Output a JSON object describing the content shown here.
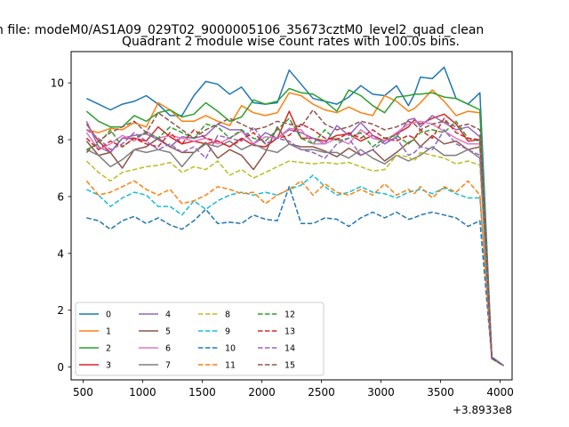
{
  "chart_data": {
    "type": "line",
    "suptitle": "n file: modeM0/AS1A09_029T02_9000005106_35673cztM0_level2_quad_clean",
    "title": "Quadrant 2 module wise count rates with 100.0s bins.",
    "xlabel": "",
    "ylabel": "",
    "x_offset_label": "+3.8933e8",
    "xlim": [
      400,
      4100
    ],
    "ylim": [
      -0.45,
      11.1
    ],
    "xticks": [
      500,
      1000,
      1500,
      2000,
      2500,
      3000,
      3500,
      4000
    ],
    "yticks": [
      0,
      2,
      4,
      6,
      8,
      10
    ],
    "x": [
      530,
      630,
      730,
      830,
      930,
      1030,
      1130,
      1230,
      1330,
      1430,
      1530,
      1630,
      1730,
      1830,
      1930,
      2030,
      2130,
      2230,
      2330,
      2430,
      2530,
      2630,
      2730,
      2830,
      2930,
      3030,
      3130,
      3230,
      3280,
      3330,
      3430,
      3530,
      3630,
      3730,
      3830,
      3930,
      4030
    ],
    "series": [
      {
        "name": "0",
        "color": "#1f77b4",
        "dash": "solid",
        "values": [
          9.45,
          9.25,
          9.05,
          9.25,
          9.35,
          9.55,
          9.25,
          8.85,
          8.85,
          9.55,
          10.05,
          9.95,
          9.6,
          9.85,
          9.3,
          9.25,
          9.3,
          10.45,
          9.95,
          9.45,
          9.35,
          9.25,
          9.5,
          9.9,
          9.6,
          9.55,
          9.9,
          9.2,
          9.6,
          10.2,
          10.15,
          10.55,
          9.45,
          9.25,
          9.65,
          0.35,
          0.05
        ]
      },
      {
        "name": "1",
        "color": "#ff7f0e",
        "dash": "solid",
        "values": [
          8.35,
          8.25,
          8.4,
          8.35,
          8.6,
          8.45,
          9.3,
          9.05,
          8.65,
          8.65,
          8.85,
          8.65,
          8.5,
          9.2,
          8.95,
          8.85,
          8.95,
          9.65,
          9.55,
          9.25,
          9.05,
          8.95,
          9.15,
          8.95,
          8.85,
          9.55,
          9.35,
          9.0,
          9.1,
          9.3,
          9.75,
          9.35,
          8.85,
          9.0,
          8.95,
          0.3,
          0.05
        ]
      },
      {
        "name": "2",
        "color": "#2ca02c",
        "dash": "solid",
        "values": [
          9.0,
          8.65,
          8.45,
          8.45,
          8.85,
          8.65,
          8.95,
          9.05,
          8.8,
          8.9,
          9.3,
          9.0,
          8.65,
          8.8,
          9.4,
          9.25,
          9.35,
          9.8,
          9.65,
          9.6,
          9.35,
          9.0,
          9.75,
          9.55,
          9.2,
          8.95,
          9.5,
          9.55,
          9.6,
          9.6,
          9.65,
          9.5,
          9.45,
          9.25,
          9.05,
          0.3,
          0.05
        ]
      },
      {
        "name": "3",
        "color": "#d62728",
        "dash": "solid",
        "values": [
          8.55,
          7.95,
          7.55,
          8.05,
          8.05,
          7.95,
          8.45,
          8.1,
          7.85,
          7.95,
          7.85,
          7.95,
          7.75,
          8.05,
          7.8,
          7.75,
          8.05,
          9.0,
          8.05,
          8.05,
          7.95,
          8.15,
          8.2,
          7.95,
          8.15,
          7.95,
          8.2,
          8.45,
          8.7,
          8.55,
          8.75,
          8.9,
          8.55,
          7.95,
          8.0,
          0.3,
          0.05
        ]
      },
      {
        "name": "4",
        "color": "#9467bd",
        "dash": "solid",
        "values": [
          8.65,
          7.75,
          7.55,
          8.05,
          8.15,
          8.2,
          8.0,
          7.75,
          8.1,
          8.05,
          8.15,
          8.55,
          8.35,
          8.35,
          7.85,
          8.25,
          8.05,
          8.35,
          8.25,
          8.05,
          7.85,
          8.5,
          8.15,
          8.6,
          8.15,
          7.85,
          8.1,
          8.7,
          8.75,
          8.45,
          8.85,
          8.6,
          8.35,
          8.45,
          8.1,
          0.3,
          0.05
        ]
      },
      {
        "name": "5",
        "color": "#8c564b",
        "dash": "solid",
        "values": [
          7.95,
          7.45,
          7.55,
          7.0,
          7.65,
          7.75,
          8.05,
          7.75,
          7.55,
          7.55,
          7.9,
          7.35,
          7.65,
          7.45,
          6.95,
          7.55,
          8.45,
          7.85,
          7.75,
          7.75,
          7.6,
          7.4,
          7.7,
          7.45,
          7.65,
          7.25,
          7.55,
          7.9,
          8.0,
          7.75,
          8.15,
          7.85,
          7.95,
          7.65,
          7.75,
          0.3,
          0.05
        ]
      },
      {
        "name": "6",
        "color": "#e377c2",
        "dash": "solid",
        "values": [
          8.25,
          7.65,
          7.85,
          8.15,
          7.95,
          8.3,
          8.05,
          8.15,
          8.05,
          7.95,
          8.05,
          7.85,
          8.05,
          8.3,
          7.85,
          8.1,
          8.05,
          8.4,
          8.35,
          7.85,
          7.85,
          8.05,
          7.85,
          8.35,
          8.05,
          7.95,
          8.25,
          8.55,
          8.6,
          8.65,
          8.55,
          8.3,
          8.05,
          7.85,
          7.85,
          0.3,
          0.05
        ]
      },
      {
        "name": "7",
        "color": "#7f7f7f",
        "dash": "solid",
        "values": [
          7.65,
          7.45,
          7.05,
          7.3,
          7.65,
          7.55,
          7.65,
          7.55,
          7.05,
          7.55,
          7.85,
          7.75,
          7.95,
          7.65,
          7.85,
          7.65,
          7.55,
          7.85,
          7.65,
          7.65,
          7.55,
          7.55,
          7.35,
          7.65,
          7.35,
          7.15,
          7.45,
          7.25,
          7.35,
          7.45,
          7.75,
          7.45,
          7.45,
          7.65,
          7.35,
          0.3,
          0.05
        ]
      },
      {
        "name": "8",
        "color": "#bcbd22",
        "dash": "dash",
        "values": [
          7.25,
          6.85,
          6.55,
          6.85,
          6.95,
          7.05,
          7.1,
          7.2,
          6.85,
          7.05,
          6.95,
          7.25,
          6.75,
          6.95,
          6.65,
          6.85,
          7.05,
          7.25,
          7.2,
          7.15,
          7.2,
          7.15,
          7.2,
          7.05,
          6.9,
          6.95,
          7.45,
          7.4,
          7.25,
          7.55,
          7.45,
          7.35,
          7.15,
          7.25,
          7.1,
          0.3,
          0.05
        ]
      },
      {
        "name": "9",
        "color": "#17becf",
        "dash": "dash",
        "values": [
          6.25,
          6.05,
          5.65,
          5.95,
          6.15,
          6.05,
          5.65,
          5.65,
          5.35,
          5.85,
          5.55,
          5.85,
          6.05,
          6.15,
          6.05,
          6.15,
          6.05,
          6.25,
          6.4,
          6.75,
          6.35,
          6.05,
          6.15,
          6.35,
          6.15,
          6.1,
          5.95,
          6.15,
          6.2,
          6.25,
          6.1,
          6.3,
          6.1,
          5.95,
          5.95,
          0.3,
          0.05
        ]
      },
      {
        "name": "10",
        "color": "#1f77b4",
        "dash": "dash",
        "values": [
          5.25,
          5.15,
          4.85,
          5.15,
          5.3,
          5.05,
          5.25,
          5.0,
          4.85,
          5.15,
          5.55,
          5.05,
          5.1,
          5.05,
          5.35,
          5.2,
          5.15,
          6.35,
          5.05,
          5.05,
          5.25,
          5.2,
          4.95,
          5.25,
          5.45,
          5.25,
          5.45,
          5.2,
          5.25,
          5.35,
          5.45,
          5.35,
          5.25,
          4.95,
          5.15,
          0.3,
          0.05
        ]
      },
      {
        "name": "11",
        "color": "#ff7f0e",
        "dash": "dash",
        "values": [
          6.55,
          6.05,
          6.15,
          6.35,
          6.55,
          6.25,
          6.05,
          6.25,
          5.75,
          5.85,
          6.05,
          6.35,
          6.25,
          6.1,
          6.15,
          5.75,
          6.05,
          6.25,
          6.55,
          6.05,
          6.45,
          6.15,
          6.05,
          6.25,
          6.05,
          6.45,
          6.05,
          6.25,
          6.1,
          6.35,
          5.95,
          6.35,
          6.15,
          6.55,
          6.05,
          0.3,
          0.05
        ]
      },
      {
        "name": "12",
        "color": "#2ca02c",
        "dash": "dash",
        "values": [
          7.65,
          7.85,
          8.35,
          7.75,
          8.05,
          8.25,
          8.05,
          8.45,
          8.25,
          8.05,
          8.55,
          8.45,
          8.05,
          8.35,
          8.05,
          7.95,
          8.35,
          8.75,
          8.05,
          7.85,
          8.35,
          7.95,
          8.05,
          8.25,
          7.75,
          8.05,
          8.15,
          7.85,
          8.05,
          8.25,
          8.35,
          8.25,
          8.65,
          8.05,
          7.95,
          0.3,
          0.05
        ]
      },
      {
        "name": "13",
        "color": "#d62728",
        "dash": "dash",
        "values": [
          8.05,
          7.65,
          7.95,
          7.75,
          8.05,
          7.85,
          7.75,
          8.25,
          7.85,
          8.35,
          8.05,
          7.95,
          7.75,
          8.0,
          8.25,
          7.85,
          8.05,
          8.15,
          8.55,
          8.35,
          8.05,
          8.0,
          8.25,
          8.05,
          8.35,
          8.05,
          7.95,
          8.15,
          8.05,
          8.35,
          8.05,
          8.75,
          8.25,
          8.05,
          8.0,
          0.3,
          0.05
        ]
      },
      {
        "name": "14",
        "color": "#9467bd",
        "dash": "dash",
        "values": [
          8.35,
          8.05,
          7.65,
          7.85,
          8.25,
          7.95,
          7.65,
          7.85,
          7.55,
          7.75,
          7.35,
          8.15,
          8.05,
          7.95,
          8.45,
          7.85,
          8.05,
          7.95,
          7.65,
          7.55,
          7.35,
          7.85,
          8.05,
          7.45,
          7.65,
          7.95,
          8.05,
          7.45,
          7.55,
          7.75,
          7.65,
          8.35,
          7.85,
          7.65,
          7.45,
          0.3,
          0.05
        ]
      },
      {
        "name": "15",
        "color": "#8c564b",
        "dash": "dash",
        "values": [
          7.55,
          7.95,
          8.25,
          8.45,
          8.65,
          8.25,
          8.95,
          8.65,
          8.35,
          8.05,
          8.35,
          8.55,
          8.75,
          8.55,
          8.35,
          8.45,
          8.65,
          8.55,
          8.45,
          9.05,
          8.55,
          8.35,
          8.45,
          8.65,
          8.55,
          8.35,
          8.45,
          8.65,
          8.55,
          8.35,
          8.55,
          8.65,
          8.45,
          8.55,
          8.35,
          0.3,
          0.05
        ]
      }
    ],
    "legend": {
      "location": "lower-left",
      "ncol": 4
    },
    "grid": false
  }
}
